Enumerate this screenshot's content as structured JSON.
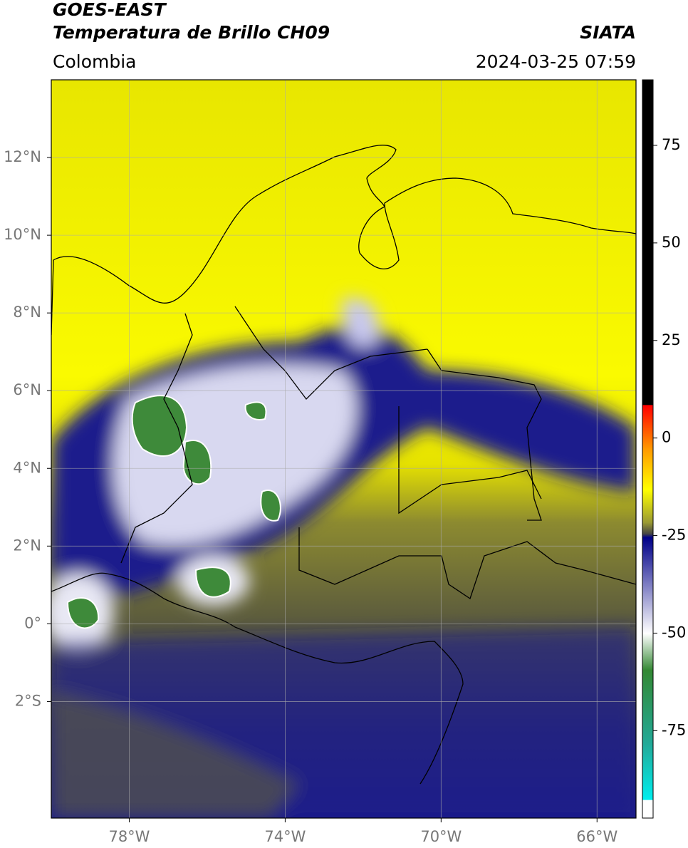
{
  "header": {
    "title": "GOES-EAST",
    "subtitle": "Temperatura de Brillo CH09",
    "source": "SIATA",
    "region": "Colombia",
    "datetime": "2024-03-25 07:59"
  },
  "map": {
    "xlim": [
      -80,
      -65
    ],
    "ylim": [
      -5,
      14
    ],
    "xticks": [
      {
        "value": -78,
        "label": "78°W"
      },
      {
        "value": -74,
        "label": "74°W"
      },
      {
        "value": -70,
        "label": "70°W"
      },
      {
        "value": -66,
        "label": "66°W"
      }
    ],
    "yticks": [
      {
        "value": 12,
        "label": "12°N"
      },
      {
        "value": 10,
        "label": "10°N"
      },
      {
        "value": 8,
        "label": "8°N"
      },
      {
        "value": 6,
        "label": "6°N"
      },
      {
        "value": 4,
        "label": "4°N"
      },
      {
        "value": 2,
        "label": "2°N"
      },
      {
        "value": 0,
        "label": "0°"
      },
      {
        "value": -2,
        "label": "2°S"
      }
    ],
    "grid": true
  },
  "colorbar": {
    "range": [
      -97.4,
      91.8
    ],
    "ticks": [
      75,
      50,
      25,
      0,
      -25,
      -50,
      -75
    ]
  }
}
